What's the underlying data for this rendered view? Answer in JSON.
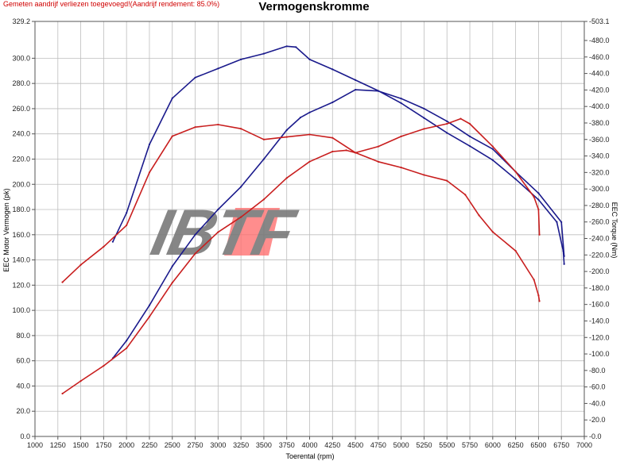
{
  "header": {
    "note": "Gemeten aandrijf verliezen toegevoegd!(Aandrijf rendement: 85.0%)",
    "title": "Vermogenskromme"
  },
  "watermark": {
    "text": "IBTF"
  },
  "colors": {
    "stock": "#1a1a8c",
    "tuned": "#c81e1e",
    "grid": "#bdbdbd",
    "logo_gray": "#7a7a7a",
    "logo_red": "#ff6b6b"
  },
  "chart_data": {
    "type": "line",
    "title": "Vermogenskromme",
    "xlabel": "Toerental (rpm)",
    "ylabel_left": "EEC Motor Vermogen (pk)",
    "ylabel_right": "EEC Torque (Nm)",
    "xlim": [
      1000,
      7000
    ],
    "ylim_left": [
      0,
      329.2
    ],
    "ylim_right": [
      0,
      503.1
    ],
    "grid": true,
    "x_ticks": [
      1000,
      1250,
      1500,
      1750,
      2000,
      2250,
      2500,
      2750,
      3000,
      3250,
      3500,
      3750,
      4000,
      4250,
      4500,
      4750,
      5000,
      5250,
      5500,
      5750,
      6000,
      6250,
      6500,
      6750,
      7000
    ],
    "y_ticks_left": [
      "0.0",
      "20.0",
      "40.0",
      "60.0",
      "80.0",
      "100.0",
      "120.0",
      "140.0",
      "160.0",
      "180.0",
      "200.0",
      "220.0",
      "240.0",
      "260.0",
      "280.0",
      "300.0",
      "329.2"
    ],
    "y_ticks_right": [
      "0.0",
      "20.0",
      "40.0",
      "60.0",
      "80.0",
      "100.0",
      "120.0",
      "140.0",
      "160.0",
      "180.0",
      "200.0",
      "220.0",
      "240.0",
      "260.0",
      "280.0",
      "300.0",
      "320.0",
      "340.0",
      "360.0",
      "380.0",
      "400.0",
      "420.0",
      "440.0",
      "460.0",
      "480.0",
      "503.1"
    ],
    "series": [
      {
        "color_key": "stock",
        "axis": "left",
        "quantity": "power",
        "x": [
          1850,
          2000,
          2250,
          2500,
          2750,
          3000,
          3250,
          3500,
          3750,
          3900,
          4000,
          4250,
          4500,
          4750,
          5000,
          5250,
          5500,
          5750,
          6000,
          6250,
          6500,
          6750,
          6780
        ],
        "y": [
          62,
          76,
          104,
          135,
          160,
          180,
          198,
          220,
          243,
          253,
          257,
          265,
          275,
          274,
          268,
          260,
          250,
          238,
          228,
          210,
          193,
          170,
          143
        ]
      },
      {
        "color_key": "stock",
        "axis": "right",
        "quantity": "torque",
        "x": [
          1850,
          2000,
          2250,
          2500,
          2750,
          3000,
          3250,
          3500,
          3750,
          3850,
          4000,
          4250,
          4500,
          4750,
          5000,
          5250,
          5500,
          5750,
          6000,
          6250,
          6500,
          6700,
          6770,
          6780
        ],
        "y": [
          236,
          271,
          354,
          410,
          435,
          446,
          457,
          464,
          473,
          472,
          457,
          445,
          432,
          419,
          404,
          386,
          368,
          352,
          335,
          312,
          287,
          260,
          225,
          209
        ]
      },
      {
        "color_key": "tuned",
        "axis": "left",
        "quantity": "power",
        "x": [
          1300,
          1500,
          1750,
          2000,
          2250,
          2500,
          2750,
          3000,
          3250,
          3500,
          3750,
          4000,
          4250,
          4400,
          4500,
          4750,
          5000,
          5250,
          5500,
          5650,
          5750,
          6000,
          6250,
          6450,
          6500,
          6510
        ],
        "y": [
          34,
          44,
          56,
          70,
          95,
          122,
          145,
          162,
          174,
          188,
          205,
          218,
          226,
          227,
          225,
          230,
          238,
          244,
          248,
          252,
          248,
          230,
          210,
          190,
          180,
          160
        ]
      },
      {
        "color_key": "tuned",
        "axis": "right",
        "quantity": "torque",
        "x": [
          1300,
          1500,
          1750,
          2000,
          2250,
          2500,
          2750,
          3000,
          3250,
          3500,
          3750,
          4000,
          4250,
          4500,
          4750,
          5000,
          5250,
          5500,
          5700,
          5850,
          6000,
          6250,
          6450,
          6500,
          6510
        ],
        "y": [
          187,
          208,
          230,
          256,
          320,
          364,
          375,
          378,
          373,
          360,
          363,
          366,
          362,
          344,
          333,
          326,
          317,
          310,
          293,
          268,
          248,
          225,
          190,
          171,
          164
        ]
      }
    ]
  }
}
